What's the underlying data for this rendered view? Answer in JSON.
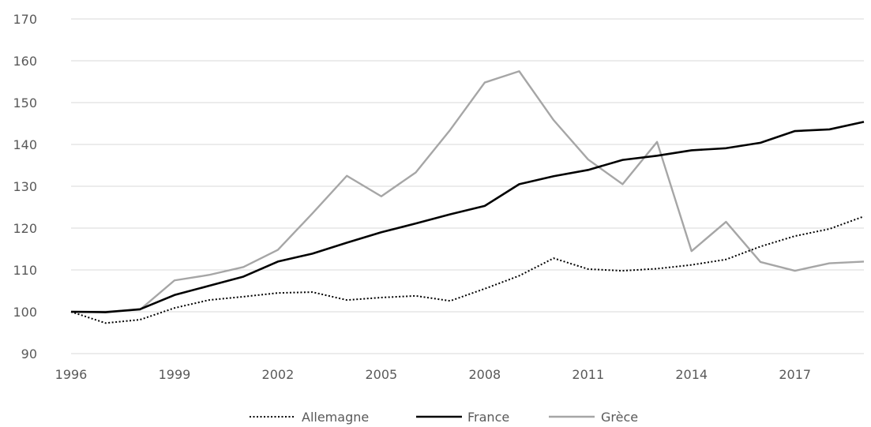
{
  "chart_data": {
    "type": "line",
    "title": "",
    "xlabel": "",
    "ylabel": "",
    "x": [
      1996,
      1997,
      1998,
      1999,
      2000,
      2001,
      2002,
      2003,
      2004,
      2005,
      2006,
      2007,
      2008,
      2009,
      2010,
      2011,
      2012,
      2013,
      2014,
      2015,
      2016,
      2017,
      2018,
      2019
    ],
    "xticks": [
      "1996",
      "1999",
      "2002",
      "2005",
      "2008",
      "2011",
      "2014",
      "2017"
    ],
    "yticks": [
      "90",
      "100",
      "110",
      "120",
      "130",
      "140",
      "150",
      "160",
      "170"
    ],
    "ylim": [
      90,
      170
    ],
    "grid": true,
    "legend_position": "bottom",
    "series": [
      {
        "name": "Allemagne",
        "style": "dotted",
        "color": "#000000",
        "values": [
          100,
          97.3,
          98.1,
          100.9,
          102.8,
          103.6,
          104.5,
          104.7,
          102.8,
          103.4,
          103.8,
          102.6,
          105.5,
          108.6,
          112.8,
          110.2,
          109.8,
          110.3,
          111.2,
          112.5,
          115.6,
          118.1,
          119.8,
          122.8
        ]
      },
      {
        "name": "France",
        "style": "solid",
        "color": "#000000",
        "values": [
          100,
          99.9,
          100.6,
          104.0,
          106.2,
          108.4,
          112.0,
          113.9,
          116.5,
          119.0,
          121.1,
          123.3,
          125.3,
          130.5,
          132.4,
          133.9,
          136.3,
          137.3,
          138.6,
          139.1,
          140.4,
          143.2,
          143.6,
          145.4
        ]
      },
      {
        "name": "Grèce",
        "style": "solid",
        "color": "#a6a6a6",
        "values": [
          100,
          100,
          100.5,
          107.5,
          108.8,
          110.7,
          114.8,
          123.5,
          132.5,
          127.6,
          133.3,
          143.5,
          154.8,
          157.5,
          145.8,
          136.4,
          130.5,
          140.6,
          114.5,
          121.5,
          111.9,
          109.8,
          111.6,
          112.0
        ]
      }
    ]
  }
}
